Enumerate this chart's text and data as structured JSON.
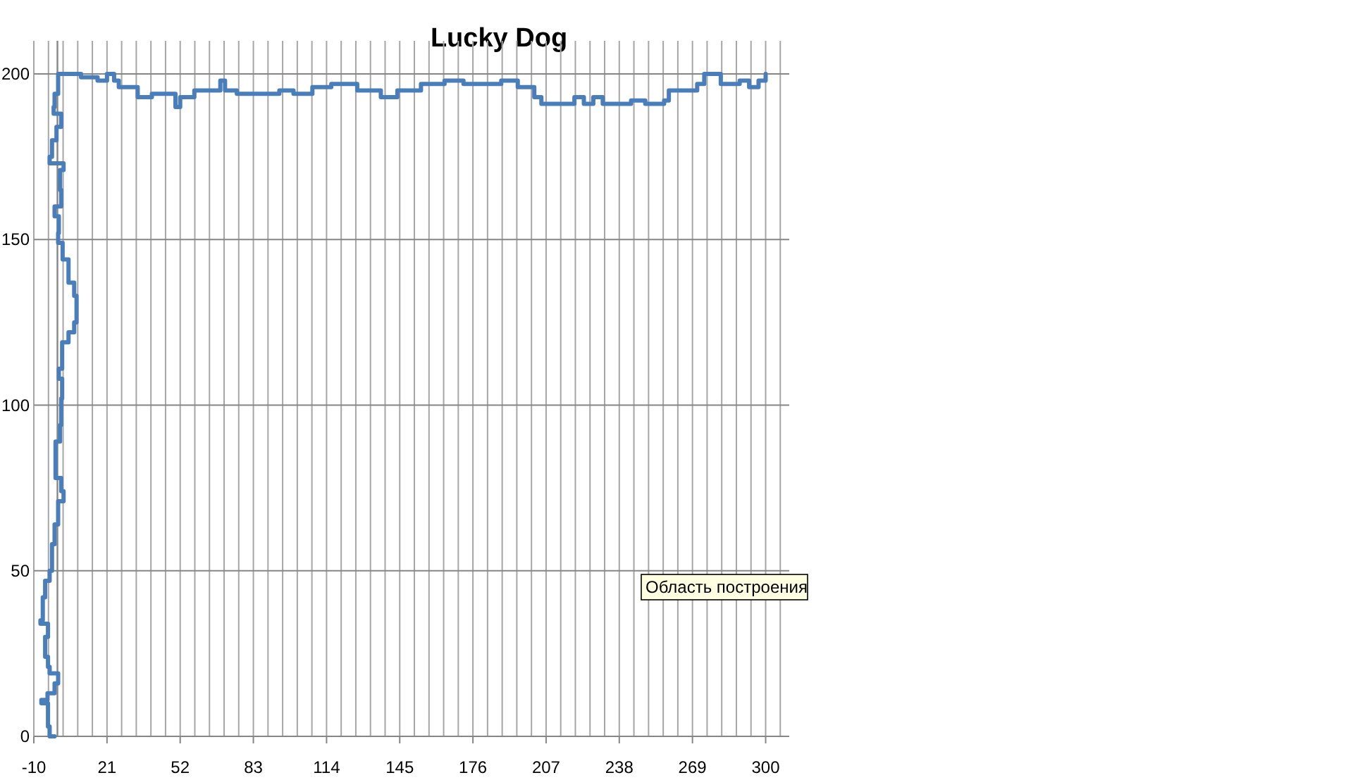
{
  "chart_data": {
    "type": "step",
    "title": "Lucky Dog",
    "x": [
      -1.2,
      -3.3,
      -4,
      -6.8,
      -4.2,
      -1.2,
      0.3,
      -3.3,
      -4,
      -5.2,
      -4,
      -7.2,
      -6.2,
      -5.2,
      -3.3,
      -2.3,
      -1.2,
      0.3,
      2.6,
      1.6,
      -0.8,
      -0.8,
      1.1,
      1.6,
      2,
      0.6,
      2,
      4.7,
      7.1,
      8.1,
      7.1,
      4.7,
      2.2,
      0.3,
      0.6,
      -1.2,
      1.6,
      1.1,
      2.6,
      -3.3,
      -2.3,
      -0.4,
      1.6,
      -1.6,
      -1.2,
      0.3,
      0.3,
      10,
      17,
      21,
      24,
      26,
      34,
      40,
      50,
      52,
      58,
      69,
      71,
      76,
      94,
      100,
      108,
      116,
      127,
      137,
      144,
      154,
      164,
      172,
      188,
      195,
      202,
      205,
      219,
      223,
      227,
      231,
      243,
      249,
      257,
      259,
      271,
      274,
      281,
      289,
      293,
      297,
      300
    ],
    "series": [
      {
        "color": "#4a7ebb",
        "values": [
          0,
          3,
          10,
          11,
          13,
          16,
          19,
          21,
          24,
          30,
          34,
          35,
          42,
          47,
          50,
          58,
          64,
          71,
          74,
          78,
          84,
          89,
          94,
          102,
          108,
          111,
          119,
          122,
          125,
          133,
          137,
          144,
          149,
          152,
          157,
          160,
          165,
          171,
          173,
          175,
          180,
          184,
          188,
          190,
          194,
          197,
          200,
          199,
          198,
          200,
          198,
          196,
          193,
          194,
          190,
          193,
          195,
          198,
          195,
          194,
          195,
          194,
          196,
          197,
          195,
          193,
          195,
          197,
          198,
          197,
          198,
          196,
          193,
          191,
          193,
          191,
          193,
          191,
          192,
          191,
          192,
          195,
          197,
          200,
          197,
          198,
          196,
          198,
          200
        ]
      }
    ],
    "xlim": [
      -10,
      310
    ],
    "xticks": [
      -10,
      {
        "value": -3.8,
        "label": null
      },
      {
        "value": 2.4,
        "label": null
      },
      {
        "value": 8.6,
        "label": null
      },
      {
        "value": 14.8,
        "label": null
      },
      21,
      {
        "value": 27.2,
        "label": null
      },
      {
        "value": 33.4,
        "label": null
      },
      {
        "value": 39.6,
        "label": null
      },
      {
        "value": 45.8,
        "label": null
      },
      52,
      {
        "value": 58.2,
        "label": null
      },
      {
        "value": 64.4,
        "label": null
      },
      {
        "value": 70.6,
        "label": null
      },
      {
        "value": 76.8,
        "label": null
      },
      83,
      {
        "value": 89.2,
        "label": null
      },
      {
        "value": 95.4,
        "label": null
      },
      {
        "value": 101.6,
        "label": null
      },
      {
        "value": 107.8,
        "label": null
      },
      114,
      {
        "value": 120.2,
        "label": null
      },
      {
        "value": 126.4,
        "label": null
      },
      {
        "value": 132.6,
        "label": null
      },
      {
        "value": 138.8,
        "label": null
      },
      145,
      {
        "value": 151.2,
        "label": null
      },
      {
        "value": 157.4,
        "label": null
      },
      {
        "value": 163.6,
        "label": null
      },
      {
        "value": 169.8,
        "label": null
      },
      176,
      {
        "value": 182.2,
        "label": null
      },
      {
        "value": 188.4,
        "label": null
      },
      {
        "value": 194.6,
        "label": null
      },
      {
        "value": 200.8,
        "label": null
      },
      207,
      {
        "value": 213.2,
        "label": null
      },
      {
        "value": 219.4,
        "label": null
      },
      {
        "value": 225.6,
        "label": null
      },
      {
        "value": 231.8,
        "label": null
      },
      238,
      {
        "value": 244.2,
        "label": null
      },
      {
        "value": 250.4,
        "label": null
      },
      {
        "value": 256.6,
        "label": null
      },
      {
        "value": 262.8,
        "label": null
      },
      269,
      {
        "value": 275.2,
        "label": null
      },
      {
        "value": 281.4,
        "label": null
      },
      {
        "value": 287.6,
        "label": null
      },
      {
        "value": 293.8,
        "label": null
      },
      300,
      {
        "value": 306.2,
        "label": null
      }
    ],
    "ylim": [
      0,
      210
    ],
    "yticks": [
      0,
      50,
      100,
      150,
      200
    ],
    "grid": true,
    "annotations": [
      "Область построения"
    ]
  }
}
